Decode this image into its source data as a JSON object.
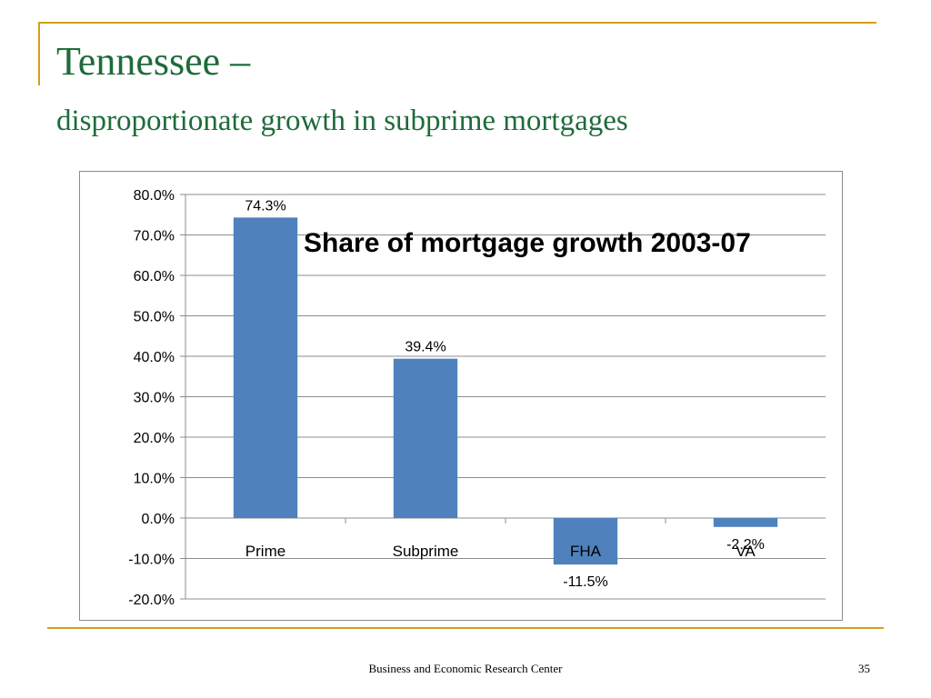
{
  "slide": {
    "title": "Tennessee –",
    "subtitle": "disproportionate growth in subprime mortgages",
    "footer": "Business and Economic Research Center",
    "page_number": "35"
  },
  "colors": {
    "accent_rule": "#d4a017",
    "title_text": "#1e6b3a",
    "bar": "#4f81bd"
  },
  "chart_data": {
    "type": "bar",
    "title": "Share of mortgage growth 2003-07",
    "categories": [
      "Prime",
      "Subprime",
      "FHA",
      "VA"
    ],
    "values": [
      74.3,
      39.4,
      -11.5,
      -2.2
    ],
    "data_labels": [
      "74.3%",
      "39.4%",
      "-11.5%",
      "-2.2%"
    ],
    "ylim": [
      -20,
      80
    ],
    "y_ticks": [
      80,
      70,
      60,
      50,
      40,
      30,
      20,
      10,
      0,
      -10,
      -20
    ],
    "y_tick_labels": [
      "80.0%",
      "70.0%",
      "60.0%",
      "50.0%",
      "40.0%",
      "30.0%",
      "20.0%",
      "10.0%",
      "0.0%",
      "-10.0%",
      "-20.0%"
    ],
    "xlabel": "",
    "ylabel": "",
    "grid": true,
    "legend": false
  }
}
